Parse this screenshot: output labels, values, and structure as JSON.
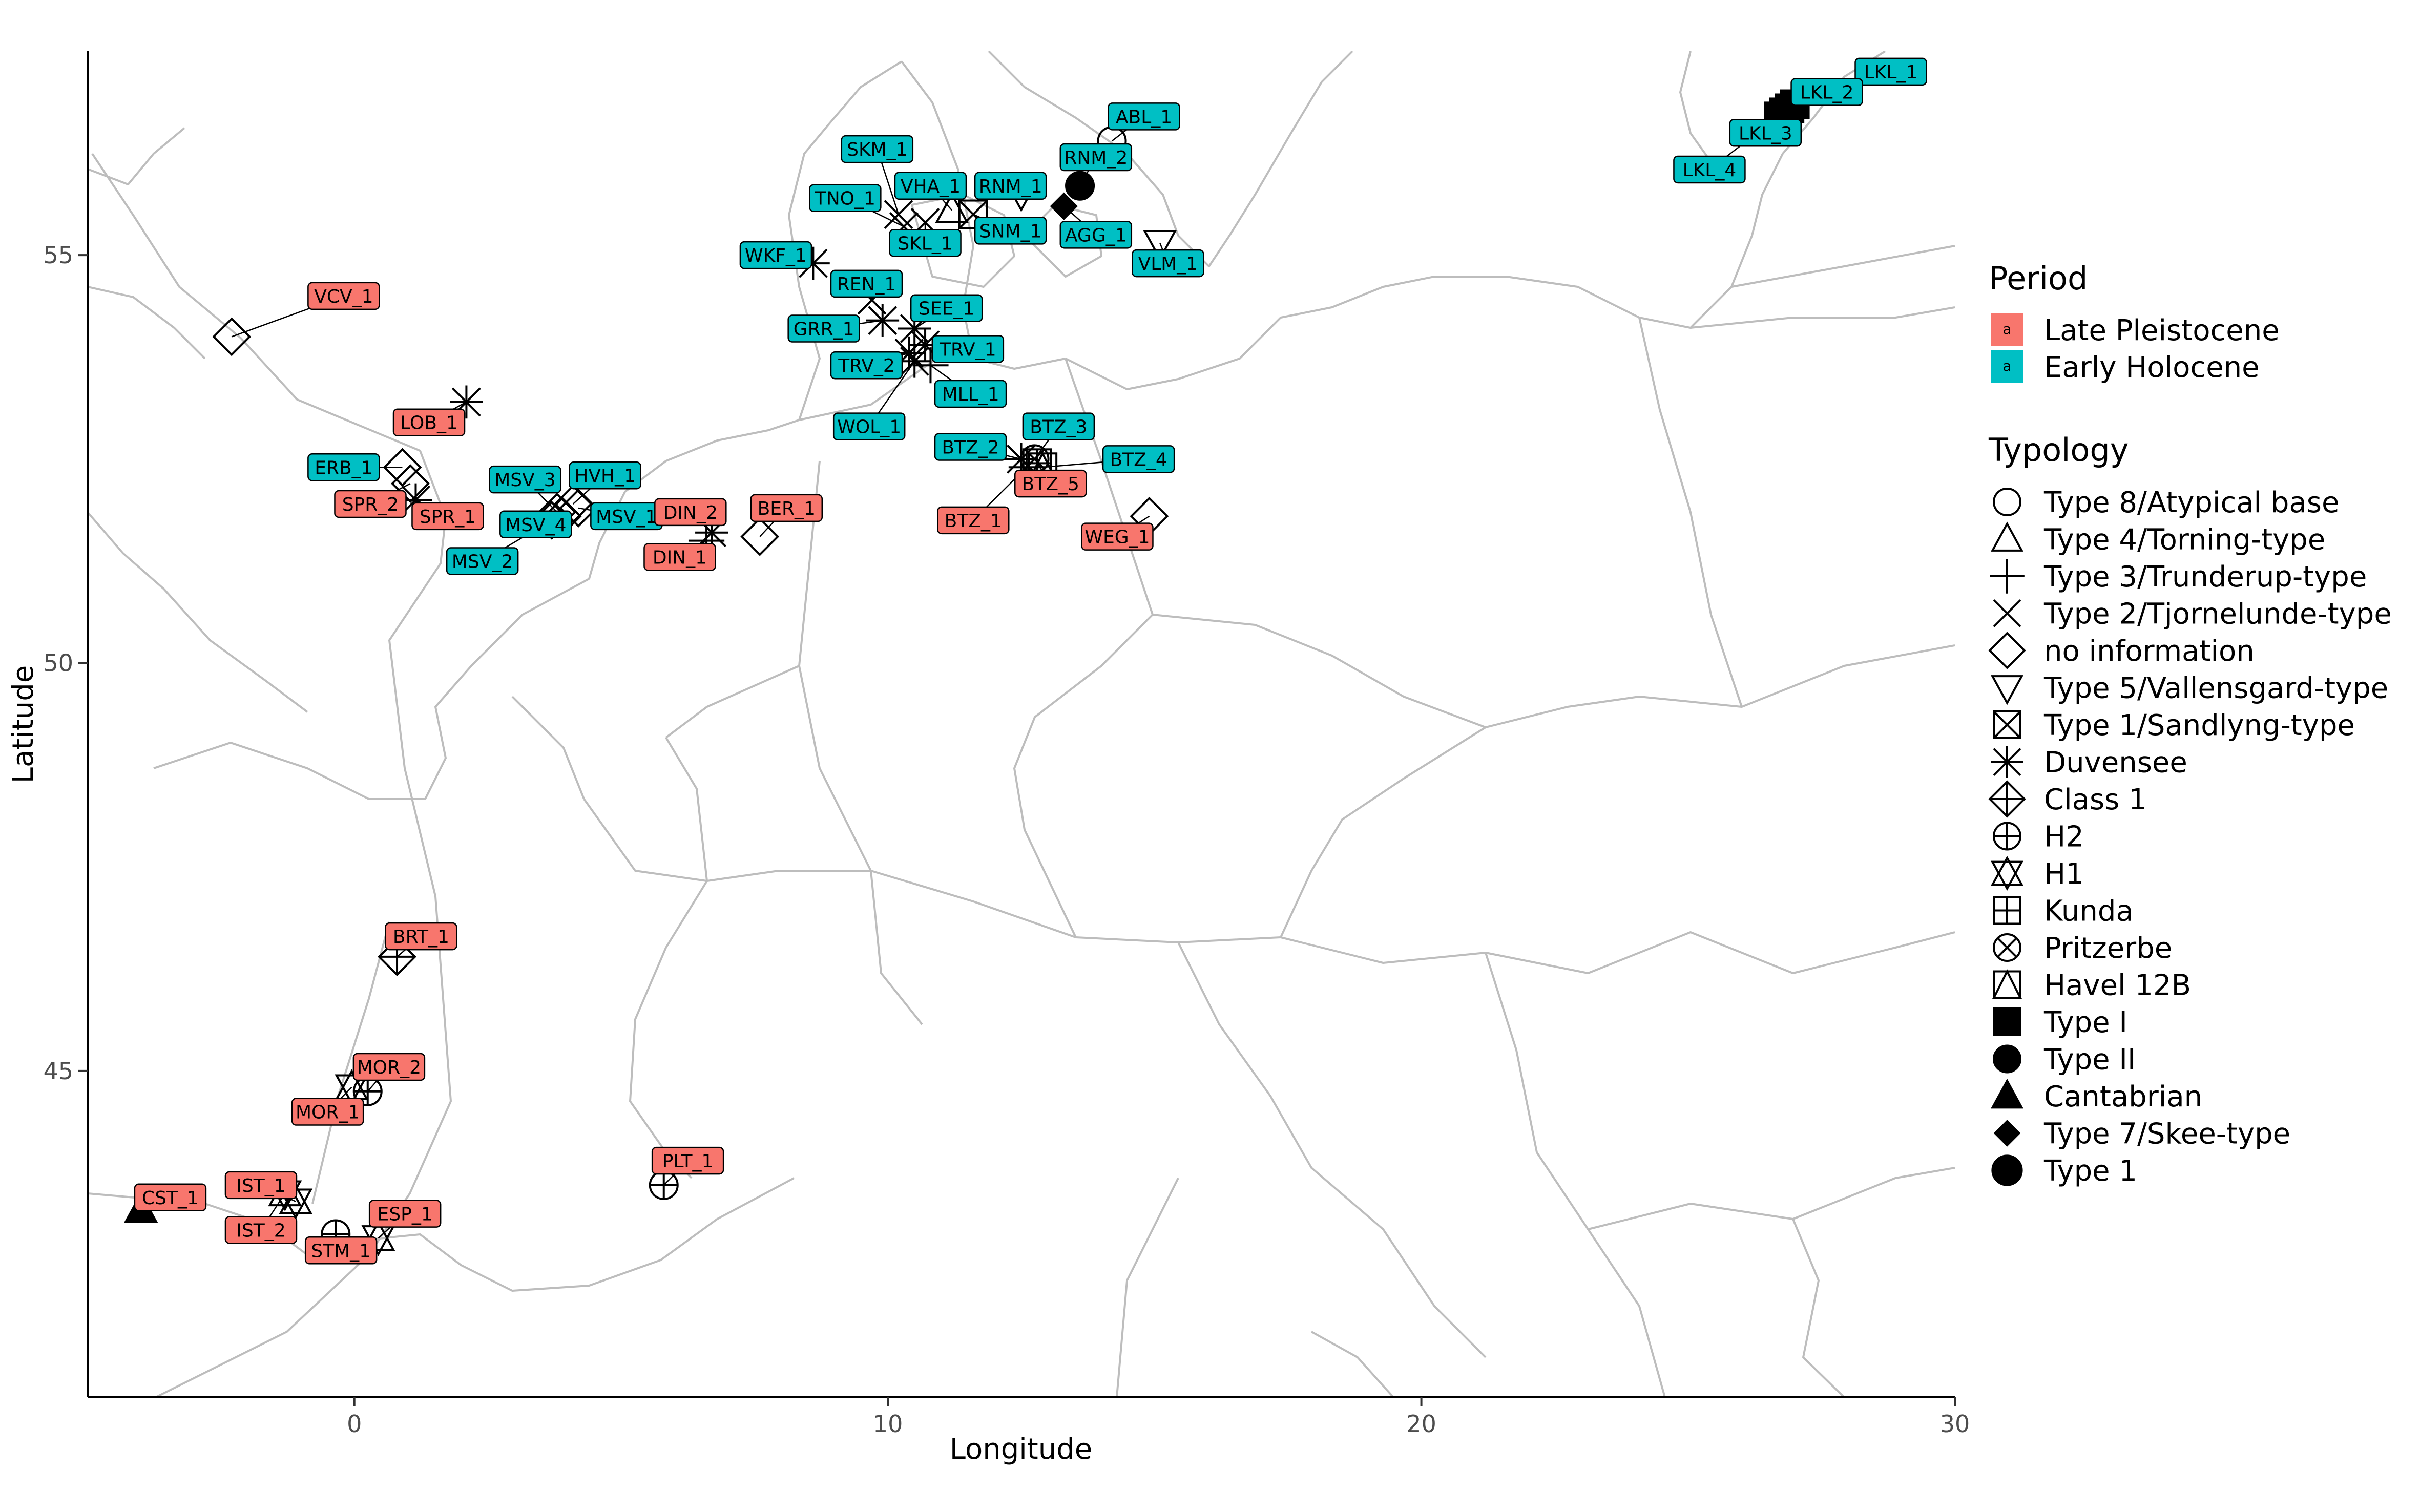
{
  "chart_data": {
    "type": "scatter",
    "xlabel": "Longitude",
    "ylabel": "Latitude",
    "xlim": [
      -5,
      30
    ],
    "ylim": [
      41,
      57.5
    ],
    "x_ticks": [
      {
        "value": 0,
        "label": "0"
      },
      {
        "value": 10,
        "label": "10"
      },
      {
        "value": 20,
        "label": "20"
      },
      {
        "value": 30,
        "label": "30"
      }
    ],
    "y_ticks": [
      {
        "value": 45,
        "label": "45"
      },
      {
        "value": 50,
        "label": "50"
      },
      {
        "value": 55,
        "label": "55"
      }
    ],
    "grid": false,
    "background": "basemap of European coastlines and country borders",
    "legend_position": "right",
    "period_legend": {
      "title": "Period",
      "key_glyph": "a",
      "items": [
        {
          "label": "Late Pleistocene",
          "color": "#F8766D"
        },
        {
          "label": "Early Holocene",
          "color": "#00BFC4"
        }
      ]
    },
    "typology_legend": {
      "title": "Typology",
      "items": [
        {
          "label": "Type 8/Atypical base",
          "shape": "circle-open"
        },
        {
          "label": "Type 4/Torning-type",
          "shape": "triangle-open"
        },
        {
          "label": "Type 3/Trunderup-type",
          "shape": "plus"
        },
        {
          "label": "Type 2/Tjornelunde-type",
          "shape": "cross"
        },
        {
          "label": "no information",
          "shape": "diamond-open"
        },
        {
          "label": "Type 5/Vallensgard-type",
          "shape": "triangle-down-open"
        },
        {
          "label": "Type 1/Sandlyng-type",
          "shape": "square-cross"
        },
        {
          "label": "Duvensee",
          "shape": "asterisk"
        },
        {
          "label": "Class 1",
          "shape": "diamond-plus"
        },
        {
          "label": "H2",
          "shape": "circle-plus"
        },
        {
          "label": "H1",
          "shape": "triangles-up-down"
        },
        {
          "label": "Kunda",
          "shape": "square-plus"
        },
        {
          "label": "Pritzerbe",
          "shape": "circle-cross"
        },
        {
          "label": "Havel 12B",
          "shape": "square-triangle"
        },
        {
          "label": "Type I",
          "shape": "square-filled"
        },
        {
          "label": "Type II",
          "shape": "circle-filled"
        },
        {
          "label": "Cantabrian",
          "shape": "triangle-filled"
        },
        {
          "label": "Type 7/Skee-type",
          "shape": "diamond-filled"
        },
        {
          "label": "Type 1",
          "shape": "circle-filled-large"
        }
      ]
    },
    "sites": [
      {
        "label": "VCV_1",
        "period": "Late Pleistocene",
        "lon": -2.3,
        "lat": 54.0,
        "shape": "diamond-open",
        "lab_lon": -0.2,
        "lab_lat": 54.5
      },
      {
        "label": "LOB_1",
        "period": "Late Pleistocene",
        "lon": 2.1,
        "lat": 53.2,
        "shape": "asterisk",
        "lab_lon": 1.4,
        "lab_lat": 52.95
      },
      {
        "label": "ERB_1",
        "period": "Early Holocene",
        "lon": 0.9,
        "lat": 52.4,
        "shape": "diamond-open",
        "lab_lon": -0.2,
        "lab_lat": 52.4
      },
      {
        "label": "SPR_2",
        "period": "Late Pleistocene",
        "lon": 1.05,
        "lat": 52.2,
        "shape": "diamond-open",
        "lab_lon": 0.3,
        "lab_lat": 51.95
      },
      {
        "label": "SPR_1",
        "period": "Late Pleistocene",
        "lon": 1.15,
        "lat": 52.0,
        "shape": "asterisk",
        "lab_lon": 1.75,
        "lab_lat": 51.8
      },
      {
        "label": "MSV_3",
        "period": "Early Holocene",
        "lon": 3.8,
        "lat": 51.85,
        "shape": "diamond-open",
        "lab_lon": 3.2,
        "lab_lat": 52.25
      },
      {
        "label": "HVH_1",
        "period": "Early Holocene",
        "lon": 4.1,
        "lat": 51.95,
        "shape": "diamond-open",
        "lab_lon": 4.7,
        "lab_lat": 52.3
      },
      {
        "label": "MSV_4",
        "period": "Early Holocene",
        "lon": 3.9,
        "lat": 51.8,
        "shape": "diamond-open",
        "lab_lon": 3.4,
        "lab_lat": 51.7
      },
      {
        "label": "MSV_1",
        "period": "Early Holocene",
        "lon": 4.2,
        "lat": 51.9,
        "shape": "diamond-open",
        "lab_lon": 5.1,
        "lab_lat": 51.8
      },
      {
        "label": "MSV_2",
        "period": "Early Holocene",
        "lon": 3.7,
        "lat": 51.75,
        "shape": "diamond-open",
        "lab_lon": 2.4,
        "lab_lat": 51.25
      },
      {
        "label": "DIN_2",
        "period": "Late Pleistocene",
        "lon": 6.7,
        "lat": 51.6,
        "shape": "asterisk",
        "lab_lon": 6.3,
        "lab_lat": 51.85
      },
      {
        "label": "DIN_1",
        "period": "Late Pleistocene",
        "lon": 6.6,
        "lat": 51.5,
        "shape": "plus",
        "lab_lon": 6.1,
        "lab_lat": 51.3
      },
      {
        "label": "BER_1",
        "period": "Late Pleistocene",
        "lon": 7.6,
        "lat": 51.55,
        "shape": "diamond-open",
        "lab_lon": 8.1,
        "lab_lat": 51.9
      },
      {
        "label": "WKF_1",
        "period": "Early Holocene",
        "lon": 8.6,
        "lat": 54.9,
        "shape": "asterisk",
        "lab_lon": 7.9,
        "lab_lat": 55.0
      },
      {
        "label": "REN_1",
        "period": "Early Holocene",
        "lon": 9.7,
        "lat": 54.45,
        "shape": "cross",
        "lab_lon": 9.6,
        "lab_lat": 54.65
      },
      {
        "label": "GRR_1",
        "period": "Early Holocene",
        "lon": 9.9,
        "lat": 54.2,
        "shape": "asterisk",
        "lab_lon": 8.8,
        "lab_lat": 54.1
      },
      {
        "label": "SEE_1",
        "period": "Early Holocene",
        "lon": 10.5,
        "lat": 54.1,
        "shape": "asterisk",
        "lab_lon": 11.1,
        "lab_lat": 54.35
      },
      {
        "label": "TRV_1",
        "period": "Early Holocene",
        "lon": 10.7,
        "lat": 53.9,
        "shape": "asterisk",
        "lab_lon": 11.5,
        "lab_lat": 53.85
      },
      {
        "label": "TRV_2",
        "period": "Early Holocene",
        "lon": 10.4,
        "lat": 53.8,
        "shape": "asterisk",
        "lab_lon": 9.6,
        "lab_lat": 53.65
      },
      {
        "label": "MLL_1",
        "period": "Early Holocene",
        "lon": 10.8,
        "lat": 53.65,
        "shape": "plus",
        "lab_lon": 11.55,
        "lab_lat": 53.3
      },
      {
        "label": "WOL_1",
        "period": "Early Holocene",
        "lon": 10.5,
        "lat": 53.7,
        "shape": "asterisk",
        "lab_lon": 9.65,
        "lab_lat": 52.9
      },
      {
        "label": "SKM_1",
        "period": "Early Holocene",
        "lon": 10.2,
        "lat": 55.5,
        "shape": "cross",
        "lab_lon": 9.8,
        "lab_lat": 56.3
      },
      {
        "label": "TNO_1",
        "period": "Early Holocene",
        "lon": 10.3,
        "lat": 55.35,
        "shape": "cross",
        "lab_lon": 9.2,
        "lab_lat": 55.7
      },
      {
        "label": "VHA_1",
        "period": "Early Holocene",
        "lon": 11.2,
        "lat": 55.55,
        "shape": "triangle-open",
        "lab_lon": 10.8,
        "lab_lat": 55.85
      },
      {
        "label": "SKL_1",
        "period": "Early Holocene",
        "lon": 10.7,
        "lat": 55.4,
        "shape": "cross",
        "lab_lon": 10.7,
        "lab_lat": 55.15
      },
      {
        "label": "RNM_1",
        "period": "Early Holocene",
        "lon": 12.5,
        "lat": 55.75,
        "shape": "triangle-down-open",
        "lab_lon": 12.3,
        "lab_lat": 55.85
      },
      {
        "label": "SNM_1",
        "period": "Early Holocene",
        "lon": 11.6,
        "lat": 55.5,
        "shape": "square-cross",
        "lab_lon": 12.3,
        "lab_lat": 55.3
      },
      {
        "label": "ABL_1",
        "period": "Early Holocene",
        "lon": 14.2,
        "lat": 56.4,
        "shape": "circle-open",
        "lab_lon": 14.8,
        "lab_lat": 56.7
      },
      {
        "label": "RNM_2",
        "period": "Early Holocene",
        "lon": 13.6,
        "lat": 55.85,
        "shape": "circle-filled",
        "lab_lon": 13.9,
        "lab_lat": 56.2
      },
      {
        "label": "AGG_1",
        "period": "Early Holocene",
        "lon": 13.3,
        "lat": 55.6,
        "shape": "diamond-filled",
        "lab_lon": 13.9,
        "lab_lat": 55.25
      },
      {
        "label": "VLM_1",
        "period": "Early Holocene",
        "lon": 15.1,
        "lat": 55.15,
        "shape": "triangle-down-open",
        "lab_lon": 15.25,
        "lab_lat": 54.9
      },
      {
        "label": "BTZ_2",
        "period": "Early Holocene",
        "lon": 12.5,
        "lat": 52.5,
        "shape": "asterisk",
        "lab_lon": 11.55,
        "lab_lat": 52.65
      },
      {
        "label": "BTZ_3",
        "period": "Early Holocene",
        "lon": 12.75,
        "lat": 52.5,
        "shape": "circle-cross",
        "lab_lon": 13.2,
        "lab_lat": 52.9
      },
      {
        "label": "BTZ_4",
        "period": "Early Holocene",
        "lon": 12.9,
        "lat": 52.4,
        "shape": "square-triangle",
        "lab_lon": 14.7,
        "lab_lat": 52.5
      },
      {
        "label": "BTZ_5",
        "period": "Late Pleistocene",
        "lon": 12.8,
        "lat": 52.45,
        "shape": "square-plus",
        "lab_lon": 13.05,
        "lab_lat": 52.2
      },
      {
        "label": "BTZ_1",
        "period": "Late Pleistocene",
        "lon": 12.6,
        "lat": 52.4,
        "shape": "plus",
        "lab_lon": 11.6,
        "lab_lat": 51.75
      },
      {
        "label": "WEG_1",
        "period": "Late Pleistocene",
        "lon": 14.9,
        "lat": 51.8,
        "shape": "diamond-open",
        "lab_lon": 14.3,
        "lab_lat": 51.55
      },
      {
        "label": "LKL_1",
        "period": "Early Holocene",
        "lon": 27.0,
        "lat": 56.85,
        "shape": "square-filled",
        "lab_lon": 28.8,
        "lab_lat": 57.25
      },
      {
        "label": "LKL_2",
        "period": "Early Holocene",
        "lon": 26.9,
        "lat": 56.8,
        "shape": "square-filled",
        "lab_lon": 27.6,
        "lab_lat": 57.0
      },
      {
        "label": "LKL_3",
        "period": "Early Holocene",
        "lon": 26.7,
        "lat": 56.7,
        "shape": "square-filled",
        "lab_lon": 26.45,
        "lab_lat": 56.5
      },
      {
        "label": "LKL_4",
        "period": "Early Holocene",
        "lon": 26.8,
        "lat": 56.75,
        "shape": "square-filled",
        "lab_lon": 25.4,
        "lab_lat": 56.05
      },
      {
        "label": "BRT_1",
        "period": "Late Pleistocene",
        "lon": 0.8,
        "lat": 46.4,
        "shape": "diamond-plus",
        "lab_lon": 1.25,
        "lab_lat": 46.65
      },
      {
        "label": "MOR_2",
        "period": "Late Pleistocene",
        "lon": 0.25,
        "lat": 44.75,
        "shape": "circle-plus",
        "lab_lon": 0.65,
        "lab_lat": 45.05
      },
      {
        "label": "MOR_1",
        "period": "Late Pleistocene",
        "lon": -0.05,
        "lat": 44.8,
        "shape": "triangles-up-down",
        "lab_lon": -0.5,
        "lab_lat": 44.5
      },
      {
        "label": "PLT_1",
        "period": "Late Pleistocene",
        "lon": 5.8,
        "lat": 43.6,
        "shape": "circle-plus",
        "lab_lon": 6.25,
        "lab_lat": 43.9
      },
      {
        "label": "CST_1",
        "period": "Late Pleistocene",
        "lon": -4.0,
        "lat": 43.3,
        "shape": "triangle-filled",
        "lab_lon": -3.45,
        "lab_lat": 43.45
      },
      {
        "label": "IST_1",
        "period": "Late Pleistocene",
        "lon": -1.1,
        "lat": 43.4,
        "shape": "triangles-up-down",
        "lab_lon": -1.75,
        "lab_lat": 43.6
      },
      {
        "label": "IST_2",
        "period": "Late Pleistocene",
        "lon": -1.3,
        "lat": 43.5,
        "shape": "triangles-up-down",
        "lab_lon": -1.75,
        "lab_lat": 43.05
      },
      {
        "label": "STM_1",
        "period": "Late Pleistocene",
        "lon": -0.35,
        "lat": 43.0,
        "shape": "circle-plus",
        "lab_lon": -0.25,
        "lab_lat": 42.8
      },
      {
        "label": "ESP_1",
        "period": "Late Pleistocene",
        "lon": 0.45,
        "lat": 42.95,
        "shape": "triangles-up-down",
        "lab_lon": 0.95,
        "lab_lat": 43.25
      }
    ]
  },
  "colors": {
    "late_pleistocene": "#F8766D",
    "early_holocene": "#00BFC4",
    "basemap_border": "#bdbdbd",
    "symbol_stroke": "#000000"
  }
}
